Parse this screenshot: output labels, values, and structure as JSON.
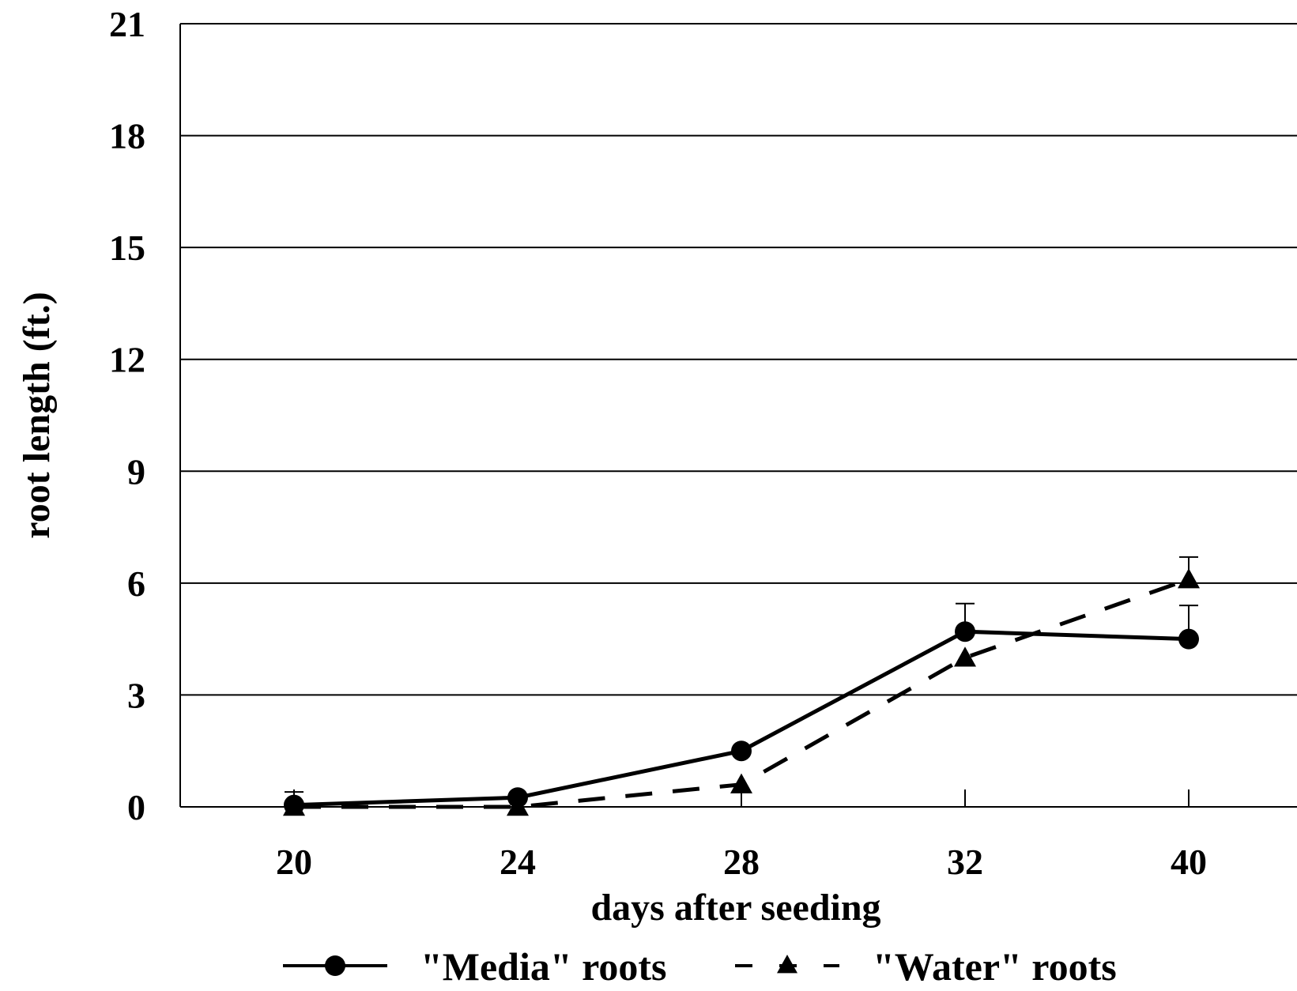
{
  "chart_data": {
    "type": "line",
    "title": "",
    "xlabel": "days after seeding",
    "ylabel": "root length (ft.)",
    "categories": [
      "20",
      "24",
      "28",
      "32",
      "40"
    ],
    "ylim": [
      0,
      21
    ],
    "yticks": [
      "0",
      "3",
      "6",
      "9",
      "12",
      "15",
      "18",
      "21"
    ],
    "grid": "horizontal",
    "legend_position": "bottom",
    "series": [
      {
        "name": "\"Media\" roots",
        "values": [
          0.05,
          0.25,
          1.5,
          4.7,
          4.5
        ],
        "error_plus": [
          0.35,
          0,
          0,
          0.75,
          0.9
        ],
        "marker": "circle",
        "line_style": "solid",
        "color": "#000000"
      },
      {
        "name": "\"Water\" roots",
        "values": [
          0.0,
          0.0,
          0.6,
          4.0,
          6.1
        ],
        "error_plus": [
          0,
          0,
          0,
          0,
          0.6
        ],
        "marker": "triangle",
        "line_style": "dashed",
        "color": "#000000"
      }
    ]
  }
}
